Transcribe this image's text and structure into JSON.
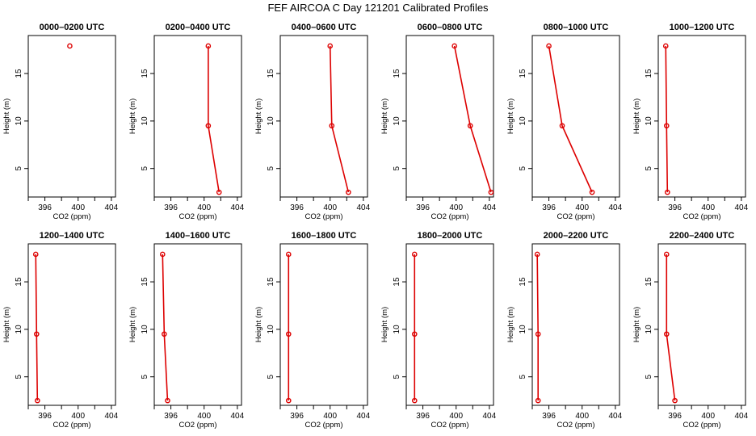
{
  "title": "FEF AIRCOA C  Day 121201  Calibrated Profiles",
  "colors": {
    "series": "#dd0000",
    "axis": "#000000",
    "background": "#ffffff"
  },
  "chart_data": {
    "type": "line",
    "xlabel": "CO2 (ppm)",
    "ylabel": "Height (m)",
    "xlim": [
      394,
      404.5
    ],
    "ylim": [
      2,
      19
    ],
    "xticks": [
      396,
      400,
      404
    ],
    "xminor": [
      394,
      398,
      402
    ],
    "yticks": [
      5,
      10,
      15
    ],
    "heights": [
      17.9,
      9.5,
      2.5
    ],
    "panels": [
      {
        "title": "0000–0200 UTC",
        "co2": [
          399.0,
          null,
          null
        ]
      },
      {
        "title": "0200–0400 UTC",
        "co2": [
          400.5,
          400.5,
          401.8
        ]
      },
      {
        "title": "0400–0600 UTC",
        "co2": [
          400.0,
          400.2,
          402.2
        ]
      },
      {
        "title": "0600–0800 UTC",
        "co2": [
          399.8,
          401.7,
          404.2
        ]
      },
      {
        "title": "0800–1000 UTC",
        "co2": [
          396.0,
          397.6,
          401.2
        ]
      },
      {
        "title": "1000–1200 UTC",
        "co2": [
          394.9,
          395.0,
          395.1
        ]
      },
      {
        "title": "1200–1400 UTC",
        "co2": [
          394.9,
          395.0,
          395.1
        ]
      },
      {
        "title": "1400–1600 UTC",
        "co2": [
          395.0,
          395.2,
          395.6
        ]
      },
      {
        "title": "1600–1800 UTC",
        "co2": [
          395.0,
          395.0,
          395.0
        ]
      },
      {
        "title": "1800–2000 UTC",
        "co2": [
          395.0,
          395.0,
          395.0
        ]
      },
      {
        "title": "2000–2200 UTC",
        "co2": [
          394.6,
          394.7,
          394.7
        ]
      },
      {
        "title": "2200–2400 UTC",
        "co2": [
          395.0,
          395.0,
          396.0
        ]
      }
    ]
  }
}
